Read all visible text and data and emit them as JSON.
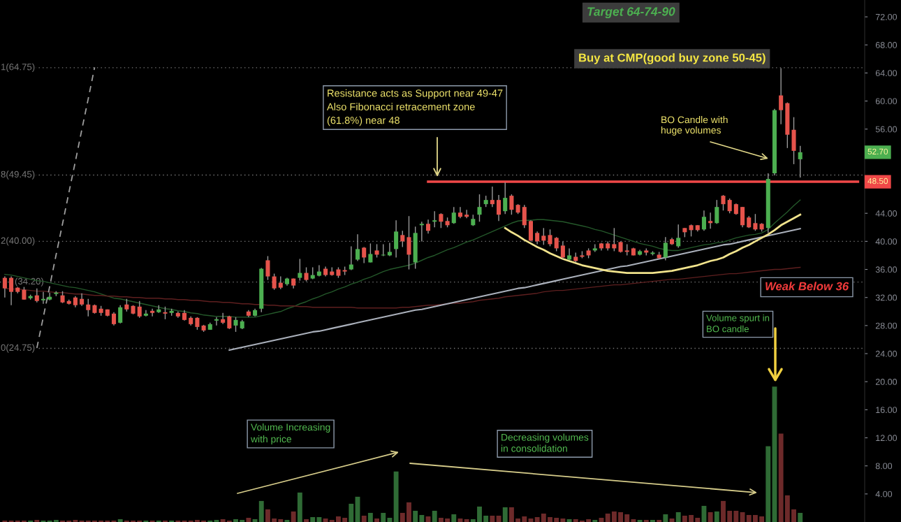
{
  "chart_data": {
    "type": "candlestick",
    "categories": [
      null,
      null,
      null,
      null,
      null,
      null,
      null,
      null,
      null,
      null,
      null,
      null,
      null,
      null,
      null,
      null,
      null,
      null,
      null,
      null,
      null,
      null,
      null,
      null,
      null,
      null,
      null,
      null,
      null,
      null,
      null,
      null,
      null,
      null,
      null,
      null,
      null,
      null,
      null,
      null,
      null,
      null,
      null,
      null,
      null,
      null,
      null,
      null,
      null,
      null,
      null,
      null,
      null,
      null,
      null,
      null,
      null,
      null,
      null,
      null,
      null,
      null,
      null,
      null,
      null,
      null,
      null,
      null,
      null,
      null,
      null,
      null,
      null,
      null,
      null,
      null,
      null,
      null,
      null,
      null,
      null,
      null,
      null,
      null,
      null,
      null,
      null,
      null,
      null,
      null,
      null,
      null,
      null,
      null,
      null,
      null,
      null,
      null,
      null,
      null,
      null,
      null,
      null,
      null,
      null,
      null,
      null,
      null,
      null,
      null,
      null,
      null,
      null,
      null,
      null,
      null,
      null,
      null,
      null,
      null,
      null,
      null,
      null,
      null,
      null,
      null,
      null,
      null,
      null,
      null,
      null,
      null,
      null,
      null
    ],
    "ohlc": [
      [
        34.8,
        35.0,
        32.0,
        33.3
      ],
      [
        34.8,
        35.0,
        30.9,
        32.8
      ],
      [
        33.4,
        33.5,
        32.6,
        32.8
      ],
      [
        33.1,
        33.5,
        31.7,
        31.7
      ],
      [
        31.9,
        32.4,
        31.7,
        32.2
      ],
      [
        32.3,
        33.3,
        31.3,
        31.5
      ],
      [
        31.6,
        32.8,
        31.1,
        31.8
      ],
      [
        31.7,
        32.7,
        31.6,
        32.1
      ],
      [
        32.5,
        32.9,
        32.2,
        32.7
      ],
      [
        32.3,
        32.9,
        31.2,
        31.3
      ],
      [
        31.5,
        31.7,
        31.0,
        31.1
      ],
      [
        32.0,
        32.2,
        30.6,
        30.9
      ],
      [
        31.8,
        32.6,
        30.8,
        31.0
      ],
      [
        31.0,
        31.8,
        29.3,
        30.2
      ],
      [
        30.9,
        31.0,
        29.7,
        29.8
      ],
      [
        30.4,
        30.8,
        29.4,
        29.8
      ],
      [
        30.3,
        30.3,
        29.3,
        29.4
      ],
      [
        29.7,
        29.9,
        28.0,
        28.2
      ],
      [
        28.4,
        30.9,
        28.3,
        30.6
      ],
      [
        31.0,
        31.8,
        30.0,
        30.3
      ],
      [
        30.8,
        30.9,
        29.6,
        29.7
      ],
      [
        30.7,
        31.5,
        29.1,
        29.3
      ],
      [
        29.4,
        30.2,
        29.3,
        29.7
      ],
      [
        30.1,
        30.4,
        29.3,
        29.8
      ],
      [
        29.9,
        30.9,
        29.8,
        30.3
      ],
      [
        29.9,
        30.7,
        28.9,
        29.7
      ],
      [
        29.8,
        30.4,
        29.4,
        30.1
      ],
      [
        29.8,
        30.0,
        29.1,
        29.3
      ],
      [
        29.8,
        30.2,
        28.7,
        28.8
      ],
      [
        29.1,
        29.3,
        28.0,
        28.2
      ],
      [
        29.1,
        29.2,
        27.4,
        27.8
      ],
      [
        28.0,
        28.1,
        27.1,
        27.3
      ],
      [
        27.4,
        28.4,
        27.4,
        28.2
      ],
      [
        28.7,
        29.2,
        28.0,
        28.9
      ],
      [
        28.9,
        29.8,
        28.2,
        28.4
      ],
      [
        29.3,
        29.4,
        27.5,
        27.6
      ],
      [
        28.0,
        29.2,
        27.1,
        28.8
      ],
      [
        27.6,
        28.8,
        27.5,
        28.6
      ],
      [
        30.0,
        30.2,
        29.2,
        29.4
      ],
      [
        29.4,
        30.4,
        29.3,
        30.2
      ],
      [
        30.4,
        36.2,
        29.9,
        36.1
      ],
      [
        37.3,
        37.9,
        34.5,
        35.0
      ],
      [
        35.0,
        35.4,
        33.1,
        33.3
      ],
      [
        34.1,
        35.0,
        33.2,
        33.4
      ],
      [
        33.9,
        34.8,
        33.7,
        34.7
      ],
      [
        34.7,
        34.7,
        33.3,
        33.7
      ],
      [
        34.8,
        37.5,
        34.4,
        35.5
      ],
      [
        35.5,
        36.3,
        34.3,
        34.5
      ],
      [
        34.7,
        36.3,
        34.6,
        35.2
      ],
      [
        35.1,
        36.6,
        35.0,
        35.7
      ],
      [
        36.1,
        36.4,
        35.0,
        35.2
      ],
      [
        35.7,
        36.3,
        35.1,
        35.2
      ],
      [
        36.0,
        36.3,
        34.8,
        35.1
      ],
      [
        35.9,
        36.4,
        35.2,
        35.7
      ],
      [
        36.0,
        39.3,
        35.9,
        36.7
      ],
      [
        37.4,
        41.0,
        37.2,
        38.9
      ],
      [
        39.1,
        39.2,
        36.9,
        37.7
      ],
      [
        37.0,
        39.7,
        37.0,
        38.2
      ],
      [
        38.7,
        39.6,
        37.7,
        38.1
      ],
      [
        38.0,
        39.6,
        37.9,
        38.1
      ],
      [
        38.0,
        39.8,
        37.9,
        38.5
      ],
      [
        38.9,
        43.0,
        37.7,
        41.4
      ],
      [
        40.9,
        41.5,
        39.2,
        40.0
      ],
      [
        40.6,
        43.6,
        36.0,
        38.1
      ],
      [
        37.0,
        42.1,
        36.1,
        41.2
      ],
      [
        42.3,
        42.8,
        40.0,
        42.5
      ],
      [
        42.5,
        43.1,
        41.1,
        41.5
      ],
      [
        42.8,
        44.3,
        42.0,
        43.0
      ],
      [
        43.9,
        44.0,
        41.9,
        42.8
      ],
      [
        42.9,
        43.4,
        42.0,
        42.3
      ],
      [
        42.6,
        44.9,
        42.5,
        44.1
      ],
      [
        44.1,
        44.9,
        43.3,
        43.5
      ],
      [
        43.8,
        44.5,
        43.3,
        43.5
      ],
      [
        42.3,
        43.8,
        42.2,
        43.2
      ],
      [
        43.8,
        46.7,
        42.8,
        44.9
      ],
      [
        45.3,
        46.5,
        44.9,
        45.9
      ],
      [
        45.9,
        47.8,
        44.9,
        45.3
      ],
      [
        45.9,
        46.6,
        42.9,
        43.8
      ],
      [
        44.3,
        48.4,
        43.9,
        46.2
      ],
      [
        46.5,
        46.7,
        43.8,
        44.5
      ],
      [
        45.2,
        45.3,
        43.9,
        44.1
      ],
      [
        44.9,
        45.2,
        41.9,
        42.3
      ],
      [
        42.9,
        43.0,
        40.0,
        40.1
      ],
      [
        41.2,
        41.4,
        39.6,
        40.0
      ],
      [
        40.8,
        41.9,
        39.5,
        40.1
      ],
      [
        40.9,
        41.7,
        39.3,
        39.6
      ],
      [
        40.5,
        40.6,
        38.6,
        39.0
      ],
      [
        39.4,
        40.0,
        37.5,
        37.7
      ],
      [
        37.4,
        39.0,
        37.3,
        38.0
      ],
      [
        37.8,
        38.4,
        37.0,
        37.2
      ],
      [
        38.0,
        38.6,
        37.6,
        37.8
      ],
      [
        38.7,
        39.0,
        37.6,
        38.0
      ],
      [
        38.7,
        39.6,
        38.5,
        39.0
      ],
      [
        39.7,
        39.8,
        38.7,
        39.0
      ],
      [
        39.7,
        40.0,
        38.7,
        39.0
      ],
      [
        39.6,
        41.9,
        38.6,
        39.0
      ],
      [
        39.9,
        40.0,
        38.4,
        38.5
      ],
      [
        38.7,
        39.6,
        38.0,
        38.5
      ],
      [
        39.0,
        39.1,
        38.0,
        38.0
      ],
      [
        38.1,
        38.8,
        38.0,
        38.6
      ],
      [
        38.7,
        39.0,
        38.0,
        38.4
      ],
      [
        38.2,
        38.6,
        38.0,
        38.4
      ],
      [
        38.1,
        38.5,
        37.5,
        37.6
      ],
      [
        37.7,
        40.6,
        37.3,
        39.8
      ],
      [
        40.3,
        40.5,
        39.5,
        39.6
      ],
      [
        39.3,
        42.4,
        39.1,
        40.5
      ],
      [
        41.9,
        41.9,
        40.6,
        41.3
      ],
      [
        42.3,
        42.4,
        40.7,
        41.6
      ],
      [
        42.3,
        42.3,
        41.4,
        41.6
      ],
      [
        41.7,
        44.4,
        41.5,
        43.5
      ],
      [
        42.9,
        44.1,
        41.8,
        42.6
      ],
      [
        42.6,
        45.9,
        42.5,
        44.9
      ],
      [
        46.5,
        46.6,
        44.4,
        45.3
      ],
      [
        45.9,
        46.1,
        44.0,
        44.3
      ],
      [
        45.3,
        45.4,
        43.8,
        43.9
      ],
      [
        44.9,
        44.9,
        42.0,
        42.3
      ],
      [
        43.4,
        43.6,
        41.9,
        42.0
      ],
      [
        42.6,
        43.9,
        41.5,
        41.7
      ],
      [
        42.5,
        42.6,
        41.4,
        41.7
      ],
      [
        41.9,
        49.7,
        41.2,
        48.9
      ],
      [
        49.7,
        58.9,
        49.4,
        58.7
      ],
      [
        60.8,
        64.7,
        56.7,
        58.7
      ],
      [
        59.7,
        59.8,
        53.3,
        55.2
      ],
      [
        55.9,
        57.7,
        51.0,
        52.9
      ],
      [
        51.7,
        53.6,
        49.1,
        52.7
      ],
      null,
      null,
      null,
      null,
      null,
      null,
      null,
      null,
      null
    ],
    "colors": [
      "#e5534b",
      "#e5534b",
      "#e5534b",
      "#e5534b",
      "#4caf50",
      "#e5534b",
      "#4caf50",
      "#4caf50",
      "#4caf50",
      "#e5534b",
      "#e5534b",
      "#e5534b",
      "#e5534b",
      "#e5534b",
      "#e5534b",
      "#e5534b",
      "#e5534b",
      "#e5534b",
      "#4caf50",
      "#e5534b",
      "#e5534b",
      "#e5534b",
      "#4caf50",
      "#e5534b",
      "#4caf50",
      "#e5534b",
      "#4caf50",
      "#e5534b",
      "#e5534b",
      "#e5534b",
      "#e5534b",
      "#e5534b",
      "#4caf50",
      "#4caf50",
      "#e5534b",
      "#e5534b",
      "#4caf50",
      "#4caf50",
      "#e5534b",
      "#4caf50",
      "#4caf50",
      "#e5534b",
      "#e5534b",
      "#e5534b",
      "#4caf50",
      "#e5534b",
      "#4caf50",
      "#e5534b",
      "#4caf50",
      "#4caf50",
      "#e5534b",
      "#e5534b",
      "#e5534b",
      "#e5534b",
      "#4caf50",
      "#4caf50",
      "#e5534b",
      "#4caf50",
      "#e5534b",
      "#4caf50",
      "#4caf50",
      "#4caf50",
      "#e5534b",
      "#e5534b",
      "#4caf50",
      "#4caf50",
      "#e5534b",
      "#4caf50",
      "#e5534b",
      "#e5534b",
      "#4caf50",
      "#e5534b",
      "#e5534b",
      "#4caf50",
      "#4caf50",
      "#4caf50",
      "#e5534b",
      "#e5534b",
      "#4caf50",
      "#e5534b",
      "#e5534b",
      "#e5534b",
      "#e5534b",
      "#e5534b",
      "#e5534b",
      "#e5534b",
      "#e5534b",
      "#e5534b",
      "#4caf50",
      "#e5534b",
      "#e5534b",
      "#e5534b",
      "#4caf50",
      "#e5534b",
      "#e5534b",
      "#e5534b",
      "#e5534b",
      "#e5534b",
      "#e5534b",
      "#4caf50",
      "#e5534b",
      "#4caf50",
      "#e5534b",
      "#4caf50",
      "#e5534b",
      "#4caf50",
      "#e5534b",
      "#e5534b",
      "#e5534b",
      "#4caf50",
      "#e5534b",
      "#4caf50",
      "#e5534b",
      "#e5534b",
      "#e5534b",
      "#e5534b",
      "#e5534b",
      "#e5534b",
      "#e5534b",
      "#4caf50",
      "#4caf50",
      "#e5534b",
      "#e5534b",
      "#e5534b",
      "#4caf50",
      null,
      null,
      null,
      null,
      null,
      null,
      null,
      null,
      null
    ],
    "series": [
      {
        "type": "bar",
        "values": [
          0.2,
          0.2,
          0.2,
          0.2,
          0.2,
          0.3,
          0.2,
          0.2,
          0.3,
          0.2,
          0.2,
          0.3,
          0.2,
          0.2,
          0.2,
          0.2,
          0.2,
          0.2,
          0.4,
          0.2,
          0.2,
          0.2,
          0.2,
          0.2,
          0.2,
          0.2,
          0.2,
          0.2,
          0.2,
          0.2,
          0.3,
          0.2,
          0.2,
          0.3,
          0.4,
          0.2,
          0.4,
          0.3,
          0.6,
          0.4,
          3.0,
          1.8,
          0.5,
          0.4,
          0.3,
          1.5,
          4.2,
          0.4,
          0.7,
          0.7,
          0.5,
          0.3,
          0.8,
          0.6,
          2.6,
          3.6,
          0.9,
          1.3,
          0.5,
          1.3,
          0.6,
          7.2,
          1.3,
          2.8,
          1.6,
          1.0,
          0.8,
          1.6,
          0.6,
          0.5,
          1.1,
          0.5,
          0.4,
          0.4,
          2.2,
          0.9,
          0.9,
          0.9,
          2.1,
          2.1,
          0.5,
          0.8,
          0.5,
          0.7,
          1.2,
          0.7,
          0.6,
          0.5,
          0.4,
          0.4,
          0.2,
          0.4,
          0.3,
          0.6,
          1.2,
          1.5,
          1.4,
          1.1,
          0.4,
          0.3,
          0.3,
          0.3,
          0.3,
          1.1,
          0.5,
          1.4,
          0.9,
          1.0,
          0.6,
          2.3,
          1.4,
          1.5,
          3.0,
          1.6,
          1.6,
          1.4,
          1.0,
          1.0,
          0.8,
          10.8,
          19.3,
          12.6,
          3.8,
          1.8,
          1.3,
          null,
          null,
          null,
          null,
          null,
          null,
          null,
          null,
          null
        ],
        "colors": [
          "#6d2a2a",
          "#6d2a2a",
          "#6d2a2a",
          "#6d2a2a",
          "#2f6b35",
          "#6d2a2a",
          "#2f6b35",
          "#2f6b35",
          "#2f6b35",
          "#6d2a2a",
          "#6d2a2a",
          "#6d2a2a",
          "#6d2a2a",
          "#6d2a2a",
          "#6d2a2a",
          "#6d2a2a",
          "#6d2a2a",
          "#6d2a2a",
          "#2f6b35",
          "#6d2a2a",
          "#6d2a2a",
          "#6d2a2a",
          "#2f6b35",
          "#6d2a2a",
          "#2f6b35",
          "#6d2a2a",
          "#2f6b35",
          "#6d2a2a",
          "#6d2a2a",
          "#6d2a2a",
          "#6d2a2a",
          "#6d2a2a",
          "#2f6b35",
          "#2f6b35",
          "#6d2a2a",
          "#6d2a2a",
          "#2f6b35",
          "#2f6b35",
          "#6d2a2a",
          "#2f6b35",
          "#2f6b35",
          "#6d2a2a",
          "#6d2a2a",
          "#6d2a2a",
          "#2f6b35",
          "#6d2a2a",
          "#2f6b35",
          "#6d2a2a",
          "#2f6b35",
          "#2f6b35",
          "#6d2a2a",
          "#6d2a2a",
          "#6d2a2a",
          "#6d2a2a",
          "#2f6b35",
          "#2f6b35",
          "#6d2a2a",
          "#2f6b35",
          "#6d2a2a",
          "#2f6b35",
          "#2f6b35",
          "#2f6b35",
          "#6d2a2a",
          "#6d2a2a",
          "#2f6b35",
          "#2f6b35",
          "#6d2a2a",
          "#2f6b35",
          "#6d2a2a",
          "#6d2a2a",
          "#2f6b35",
          "#6d2a2a",
          "#6d2a2a",
          "#2f6b35",
          "#2f6b35",
          "#2f6b35",
          "#6d2a2a",
          "#6d2a2a",
          "#2f6b35",
          "#6d2a2a",
          "#6d2a2a",
          "#6d2a2a",
          "#6d2a2a",
          "#6d2a2a",
          "#6d2a2a",
          "#6d2a2a",
          "#6d2a2a",
          "#6d2a2a",
          "#2f6b35",
          "#6d2a2a",
          "#6d2a2a",
          "#6d2a2a",
          "#2f6b35",
          "#6d2a2a",
          "#6d2a2a",
          "#6d2a2a",
          "#6d2a2a",
          "#6d2a2a",
          "#6d2a2a",
          "#2f6b35",
          "#6d2a2a",
          "#2f6b35",
          "#6d2a2a",
          "#2f6b35",
          "#6d2a2a",
          "#2f6b35",
          "#6d2a2a",
          "#6d2a2a",
          "#6d2a2a",
          "#2f6b35",
          "#6d2a2a",
          "#2f6b35",
          "#6d2a2a",
          "#6d2a2a",
          "#6d2a2a",
          "#6d2a2a",
          "#6d2a2a",
          "#6d2a2a",
          "#6d2a2a",
          "#2f6b35",
          "#2f6b35",
          "#6d2a2a",
          "#6d2a2a",
          "#6d2a2a",
          "#2f6b35",
          null,
          null,
          null,
          null,
          null,
          null,
          null,
          null,
          null
        ]
      },
      {
        "type": "line",
        "color": "#24582a",
        "values": [
          35.3,
          35.2,
          35.0,
          34.8,
          34.6,
          34.4,
          34.3,
          34.1,
          33.9,
          33.7,
          33.5,
          33.4,
          33.2,
          33.0,
          32.8,
          32.5,
          32.2,
          31.9,
          31.8,
          31.6,
          31.4,
          31.2,
          31.0,
          30.8,
          30.6,
          30.4,
          30.3,
          30.1,
          30.0,
          29.8,
          29.7,
          29.5,
          29.4,
          29.3,
          29.3,
          29.3,
          29.2,
          29.2,
          29.2,
          29.2,
          29.4,
          29.6,
          29.8,
          30.0,
          30.4,
          30.7,
          31.1,
          31.4,
          31.8,
          32.1,
          32.5,
          32.8,
          33.2,
          33.5,
          33.9,
          34.2,
          34.6,
          34.9,
          35.3,
          35.7,
          36.0,
          36.2,
          36.4,
          36.6,
          36.9,
          37.3,
          37.7,
          38.0,
          38.4,
          38.8,
          39.1,
          39.5,
          39.9,
          40.2,
          40.6,
          41.0,
          41.4,
          41.8,
          42.2,
          42.6,
          42.9,
          43.0,
          43.0,
          43.1,
          43.1,
          43.0,
          42.9,
          42.8,
          42.6,
          42.4,
          42.2,
          42.0,
          41.7,
          41.5,
          41.2,
          40.9,
          40.6,
          40.3,
          40.0,
          39.7,
          39.5,
          39.3,
          39.0,
          38.8,
          38.7,
          38.7,
          38.9,
          39.1,
          39.3,
          39.5,
          39.6,
          39.8,
          39.9,
          40.2,
          40.5,
          40.7,
          40.9,
          41.0,
          41.2,
          41.7,
          42.6,
          43.4,
          44.2,
          45.1,
          45.9,
          null,
          null,
          null,
          null,
          null,
          null,
          null,
          null,
          null
        ]
      },
      {
        "type": "line",
        "color": "#5e1f1f",
        "values": [
          33.3,
          33.2,
          33.2,
          33.1,
          33.0,
          32.9,
          32.9,
          32.8,
          32.7,
          32.7,
          32.6,
          32.5,
          32.5,
          32.4,
          32.3,
          32.3,
          32.2,
          32.2,
          32.1,
          32.1,
          32.0,
          32.0,
          31.9,
          31.9,
          31.9,
          31.8,
          31.8,
          31.7,
          31.7,
          31.6,
          31.6,
          31.5,
          31.4,
          31.4,
          31.3,
          31.3,
          31.2,
          31.1,
          31.1,
          31.0,
          31.0,
          30.9,
          30.9,
          30.8,
          30.8,
          30.8,
          30.7,
          30.7,
          30.6,
          30.6,
          30.6,
          30.6,
          30.6,
          30.6,
          30.6,
          30.5,
          30.5,
          30.5,
          30.5,
          30.5,
          30.5,
          30.5,
          30.6,
          30.6,
          30.7,
          30.8,
          30.9,
          30.9,
          31.0,
          31.1,
          31.2,
          31.2,
          31.3,
          31.4,
          31.6,
          31.7,
          31.8,
          31.9,
          32.1,
          32.2,
          32.3,
          32.4,
          32.5,
          32.6,
          32.8,
          32.9,
          33.0,
          33.0,
          33.1,
          33.2,
          33.3,
          33.4,
          33.5,
          33.6,
          33.7,
          33.8,
          33.8,
          33.9,
          34.0,
          34.1,
          34.2,
          34.3,
          34.4,
          34.5,
          34.6,
          34.6,
          34.7,
          34.8,
          34.9,
          35.0,
          35.1,
          35.2,
          35.3,
          35.4,
          35.4,
          35.5,
          35.6,
          35.7,
          35.8,
          35.9,
          36.0,
          36.0,
          36.1,
          36.2,
          36.3,
          null,
          null,
          null,
          null,
          null,
          null,
          null,
          null,
          null
        ]
      },
      {
        "type": "line",
        "color": "#aab0bb",
        "values": [
          null,
          null,
          null,
          null,
          null,
          null,
          null,
          null,
          null,
          null,
          null,
          null,
          null,
          null,
          null,
          null,
          null,
          null,
          null,
          null,
          null,
          null,
          null,
          null,
          null,
          null,
          null,
          null,
          null,
          null,
          null,
          null,
          null,
          null,
          null,
          24.5,
          24.7,
          24.9,
          25.1,
          25.3,
          25.5,
          25.7,
          25.9,
          26.1,
          26.3,
          26.5,
          26.7,
          26.9,
          27.1,
          27.2,
          27.4,
          27.6,
          27.8,
          28.0,
          28.2,
          28.4,
          28.6,
          28.8,
          29.0,
          29.2,
          29.4,
          29.6,
          29.8,
          30.0,
          30.2,
          30.3,
          30.5,
          30.7,
          30.9,
          31.1,
          31.3,
          31.5,
          31.7,
          31.9,
          32.1,
          32.3,
          32.5,
          32.7,
          32.9,
          33.1,
          33.3,
          33.4,
          33.6,
          33.8,
          34.0,
          34.2,
          34.4,
          34.6,
          34.8,
          35.0,
          35.2,
          35.4,
          35.6,
          35.8,
          36.0,
          36.2,
          36.4,
          36.5,
          36.7,
          36.9,
          37.1,
          37.3,
          37.5,
          37.7,
          37.9,
          38.1,
          38.3,
          38.5,
          38.7,
          38.9,
          39.1,
          39.3,
          39.5,
          39.6,
          39.8,
          40.0,
          40.2,
          40.4,
          40.6,
          40.8,
          41.0,
          41.2,
          41.4,
          41.6,
          41.8,
          null,
          null,
          null,
          null,
          null,
          null,
          null,
          null,
          null
        ]
      },
      {
        "type": "line",
        "color": "#f1e38c",
        "values": [
          null,
          null,
          null,
          null,
          null,
          null,
          null,
          null,
          null,
          null,
          null,
          null,
          null,
          null,
          null,
          null,
          null,
          null,
          null,
          null,
          null,
          null,
          null,
          null,
          null,
          null,
          null,
          null,
          null,
          null,
          null,
          null,
          null,
          null,
          null,
          null,
          null,
          null,
          null,
          null,
          null,
          null,
          null,
          null,
          null,
          null,
          null,
          null,
          null,
          null,
          null,
          null,
          null,
          null,
          null,
          null,
          null,
          null,
          null,
          null,
          null,
          null,
          null,
          null,
          null,
          null,
          null,
          null,
          null,
          null,
          null,
          null,
          null,
          null,
          null,
          null,
          null,
          null,
          41.9,
          41.3,
          40.8,
          40.2,
          39.7,
          39.2,
          38.8,
          38.3,
          37.9,
          37.5,
          37.2,
          36.9,
          36.6,
          36.4,
          36.2,
          36.0,
          35.8,
          35.7,
          35.6,
          35.5,
          35.5,
          35.5,
          35.5,
          35.5,
          35.6,
          35.7,
          35.8,
          36.0,
          36.2,
          36.4,
          36.6,
          36.9,
          37.2,
          37.4,
          37.7,
          38.2,
          38.6,
          39.1,
          39.5,
          40.0,
          40.5,
          41.0,
          41.6,
          42.3,
          42.8,
          43.3,
          43.8,
          null,
          null,
          null,
          null,
          null,
          null,
          null,
          null,
          null
        ]
      },
      {
        "type": "line",
        "color": "#9e9e9e",
        "line_style": "dashed",
        "values": [
          null,
          null,
          null,
          null,
          null,
          24.8,
          29.2,
          33.6,
          38.1,
          42.5,
          47.0,
          51.4,
          55.9,
          60.3,
          64.8,
          null,
          null,
          null,
          null,
          null,
          null,
          null,
          null,
          null,
          null,
          null,
          null,
          null,
          null,
          null,
          null,
          null,
          null,
          null,
          null,
          null,
          null,
          null,
          null,
          null,
          null,
          null,
          null,
          null,
          null,
          null,
          null,
          null,
          null,
          null,
          null,
          null,
          null,
          null,
          null,
          null,
          null,
          null,
          null,
          null,
          null,
          null,
          null,
          null,
          null,
          null,
          null,
          null,
          null,
          null,
          null,
          null,
          null,
          null,
          null,
          null,
          null,
          null,
          null,
          null,
          null,
          null,
          null,
          null,
          null,
          null,
          null,
          null,
          null,
          null,
          null,
          null,
          null,
          null,
          null,
          null,
          null,
          null,
          null,
          null,
          null,
          null,
          null,
          null,
          null,
          null,
          null,
          null,
          null,
          null,
          null,
          null,
          null,
          null,
          null,
          null,
          null,
          null,
          null,
          null,
          null,
          null,
          null,
          null,
          null,
          null,
          null,
          null,
          null,
          null,
          null,
          null,
          null,
          null
        ]
      },
      {
        "type": "line",
        "color": "#f04848",
        "values": [
          null,
          null,
          null,
          null,
          null,
          null,
          null,
          null,
          null,
          null,
          null,
          null,
          null,
          null,
          null,
          null,
          null,
          null,
          null,
          null,
          null,
          null,
          null,
          null,
          null,
          null,
          null,
          null,
          null,
          null,
          null,
          null,
          null,
          null,
          null,
          null,
          null,
          null,
          null,
          null,
          null,
          null,
          null,
          null,
          null,
          null,
          null,
          null,
          null,
          null,
          null,
          null,
          null,
          null,
          null,
          null,
          null,
          null,
          null,
          null,
          null,
          null,
          null,
          null,
          null,
          null,
          48.5,
          48.5,
          48.5,
          48.5,
          48.5,
          48.5,
          48.5,
          48.5,
          48.5,
          48.5,
          48.5,
          48.5,
          48.5,
          48.5,
          48.5,
          48.5,
          48.5,
          48.5,
          48.5,
          48.5,
          48.5,
          48.5,
          48.5,
          48.5,
          48.5,
          48.5,
          48.5,
          48.5,
          48.5,
          48.5,
          48.5,
          48.5,
          48.5,
          48.5,
          48.5,
          48.5,
          48.5,
          48.5,
          48.5,
          48.5,
          48.5,
          48.5,
          48.5,
          48.5,
          48.5,
          48.5,
          48.5,
          48.5,
          48.5,
          48.5,
          48.5,
          48.5,
          48.5,
          48.5,
          48.5,
          48.5,
          48.5,
          48.5,
          48.5,
          48.5,
          48.5,
          48.5,
          48.5,
          48.5,
          48.5,
          48.5,
          48.5,
          48.5
        ],
        "value_labels": [
          null,
          null,
          null,
          null,
          null,
          null,
          null,
          null,
          null,
          null,
          null,
          null,
          null,
          null,
          null,
          null,
          null,
          null,
          null,
          null,
          null,
          null,
          null,
          null,
          null,
          null,
          null,
          null,
          null,
          null,
          null,
          null,
          null,
          null,
          null,
          null,
          null,
          null,
          null,
          null,
          null,
          null,
          null,
          null,
          null,
          null,
          null,
          null,
          null,
          null,
          null,
          null,
          null,
          null,
          null,
          null,
          null,
          null,
          null,
          null,
          null,
          null,
          null,
          null,
          null,
          null,
          null,
          null,
          null,
          null,
          null,
          null,
          null,
          null,
          null,
          null,
          null,
          null,
          null,
          null,
          null,
          null,
          null,
          null,
          null,
          null,
          null,
          null,
          null,
          null,
          null,
          null,
          null,
          null,
          null,
          null,
          null,
          null,
          null,
          null,
          null,
          null,
          null,
          null,
          null,
          null,
          null,
          null,
          null,
          null,
          null,
          null,
          null,
          null,
          null,
          null,
          null,
          null,
          null,
          null,
          null,
          null,
          null,
          null,
          null,
          null,
          null,
          null,
          null,
          null,
          null,
          null,
          null,
          "48.50"
        ]
      }
    ],
    "ylim": [
      0,
      74.4
    ],
    "yticks": [
      {
        "value": 72,
        "label": "72.00"
      },
      {
        "value": 68,
        "label": "68.00"
      },
      {
        "value": 64,
        "label": "64.00"
      },
      {
        "value": 60,
        "label": "60.00"
      },
      {
        "value": 56,
        "label": "56.00"
      },
      {
        "value": 44,
        "label": "44.00"
      },
      {
        "value": 40,
        "label": "40.00"
      },
      {
        "value": 36,
        "label": "36.00"
      },
      {
        "value": 32,
        "label": "32.00"
      },
      {
        "value": 28,
        "label": "28.00"
      },
      {
        "value": 24,
        "label": "24.00"
      },
      {
        "value": 20,
        "label": "20.00"
      },
      {
        "value": 16,
        "label": "16.00"
      },
      {
        "value": 12,
        "label": "12.00"
      },
      {
        "value": 8,
        "label": "8.00"
      },
      {
        "value": 4,
        "label": "4.00"
      }
    ],
    "tick_labels": "y",
    "ref_lines": [
      {
        "axis": "y",
        "value": 64.75,
        "label": "1(64.75)",
        "color": "#777777",
        "line_style": "dotted"
      },
      {
        "axis": "y",
        "value": 49.45,
        "label": "8(49.45)",
        "color": "#777777",
        "line_style": "dotted"
      },
      {
        "axis": "y",
        "value": 40.0,
        "label": "2(40.00)",
        "color": "#777777",
        "line_style": "dotted"
      },
      {
        "axis": "y",
        "value": 34.2,
        "label": "(34.20)",
        "color": "#777777",
        "line_style": "dotted"
      },
      {
        "axis": "y",
        "value": 24.75,
        "label": "0(24.75)",
        "color": "#777777",
        "line_style": "dotted"
      }
    ],
    "annotations": [
      "Target 64-74-90",
      "Buy at CMP(good buy zone 50-45)",
      "Resistance acts as Support near 49-47\nAlso Fibonacci retracement zone\n(61.8%) near 48",
      "BO Candle with\nhuge volumes",
      "Weak Below 36",
      "Volume spurt in\nBO candle",
      "Volume Increasing\nwith price",
      "Decreasing volumes\nin consolidation",
      {
        "text": "52.70",
        "y": 52.7
      }
    ]
  }
}
